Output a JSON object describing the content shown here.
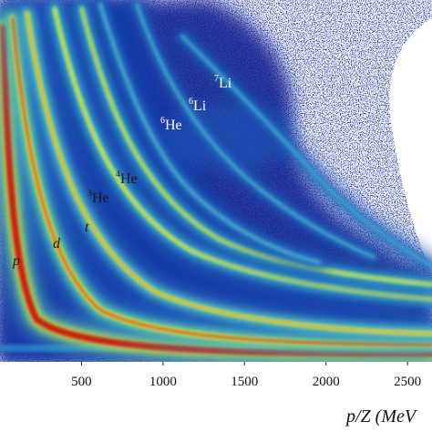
{
  "chart_data": {
    "type": "heatmap",
    "title": "",
    "xlabel": "p/Z (MeV",
    "ylabel": "",
    "xlim": [
      0,
      2650
    ],
    "xticks": [
      500,
      1000,
      1500,
      2000,
      2500
    ],
    "x_tick_labels": [
      "500",
      "1000",
      "1500",
      "2000",
      "2500"
    ],
    "grid": false,
    "colormap": [
      "#08107a",
      "#1a58c4",
      "#28a8d8",
      "#6ed6a6",
      "#d8ea48",
      "#f0a92c",
      "#cc2010"
    ],
    "background_color": "#ffffff",
    "bands": [
      {
        "name": "p",
        "label_style": "italic",
        "color_ramp": [
          "#58c8b8",
          "#b8e050",
          "#e84018",
          "#aa1010"
        ]
      },
      {
        "name": "d",
        "label_style": "italic",
        "color_ramp": [
          "#30a0d0",
          "#70d098",
          "#d0e650",
          "#e05018"
        ]
      },
      {
        "name": "t",
        "label_style": "italic",
        "color_ramp": [
          "#2a80c8",
          "#58c0c0",
          "#a8dc70",
          "#e8b030"
        ]
      },
      {
        "name": "3He",
        "label_sup": "3",
        "label_base": "He",
        "color_ramp": [
          "#2470c0",
          "#40b0c8",
          "#90d68a",
          "#d6e24a"
        ]
      },
      {
        "name": "4He",
        "label_sup": "4",
        "label_base": "He",
        "color_ramp": [
          "#2068b8",
          "#38a8c8",
          "#86d08c",
          "#c8de54"
        ]
      },
      {
        "name": "6He",
        "label_sup": "6",
        "label_base": "He",
        "color_ramp": [
          "#1448a8",
          "#2c7cc8",
          "#48a8cc"
        ]
      },
      {
        "name": "6Li",
        "label_sup": "6",
        "label_base": "Li",
        "color_ramp": [
          "#1448a8",
          "#2a7cc8",
          "#44a4cc"
        ]
      },
      {
        "name": "7Li",
        "label_sup": "7",
        "label_base": "Li",
        "color_ramp": [
          "#1448a8",
          "#287ac8",
          "#40a0cc"
        ]
      }
    ]
  }
}
